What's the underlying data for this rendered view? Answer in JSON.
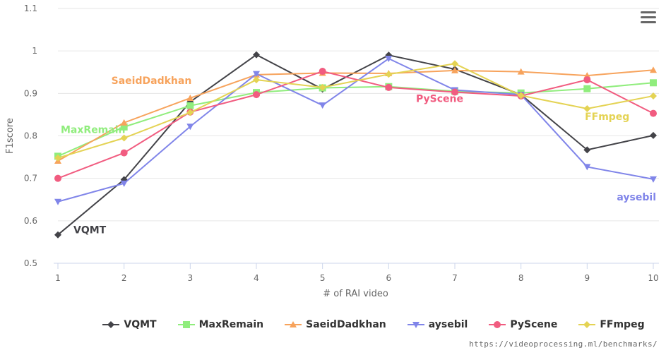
{
  "menu": {
    "icon": "hamburger-menu-icon"
  },
  "source_credit": "https://videoprocessing.ml/benchmarks/",
  "chart_data": {
    "type": "line",
    "xlabel": "# of RAI video",
    "ylabel": "F1score",
    "x": [
      1,
      2,
      3,
      4,
      5,
      6,
      7,
      8,
      9,
      10
    ],
    "ylim": [
      0.5,
      1.1
    ],
    "yticks": [
      "0.5",
      "0.6",
      "0.7",
      "0.8",
      "0.9",
      "1",
      "1.1"
    ],
    "grid": "horizontal",
    "legend_position": "bottom",
    "series": [
      {
        "name": "VQMT",
        "color": "#434348",
        "marker": "diamond",
        "values": [
          0.567,
          0.697,
          0.88,
          0.991,
          0.91,
          0.99,
          0.957,
          0.897,
          0.767,
          0.801
        ],
        "annotation": {
          "text": "VQMT",
          "at": 1
        }
      },
      {
        "name": "MaxRemain",
        "color": "#90ed7d",
        "marker": "square",
        "values": [
          0.752,
          0.821,
          0.871,
          0.902,
          0.913,
          0.916,
          0.905,
          0.901,
          0.911,
          0.925
        ],
        "annotation": {
          "text": "MaxRemain",
          "at": 1
        }
      },
      {
        "name": "SaeidDadkhan",
        "color": "#f7a35c",
        "marker": "triangle",
        "values": [
          0.741,
          0.831,
          0.889,
          0.944,
          0.948,
          0.947,
          0.954,
          0.951,
          0.942,
          0.955
        ],
        "annotation": {
          "text": "SaeidDadkhan",
          "at": 2
        }
      },
      {
        "name": "aysebil",
        "color": "#8085e9",
        "marker": "triangle-down",
        "values": [
          0.645,
          0.688,
          0.822,
          0.946,
          0.872,
          0.982,
          0.908,
          0.897,
          0.727,
          0.698
        ],
        "annotation": {
          "text": "aysebil",
          "at": 10
        }
      },
      {
        "name": "PyScene",
        "color": "#f15c80",
        "marker": "circle",
        "values": [
          0.7,
          0.76,
          0.856,
          0.897,
          0.952,
          0.914,
          0.903,
          0.894,
          0.932,
          0.853
        ],
        "annotation": {
          "text": "PyScene",
          "at": 7
        }
      },
      {
        "name": "FFmpeg",
        "color": "#e4d354",
        "marker": "diamond",
        "values": [
          0.748,
          0.795,
          0.855,
          0.932,
          0.914,
          0.945,
          0.97,
          0.895,
          0.864,
          0.894
        ],
        "annotation": {
          "text": "FFmpeg",
          "at": 9
        }
      }
    ]
  }
}
